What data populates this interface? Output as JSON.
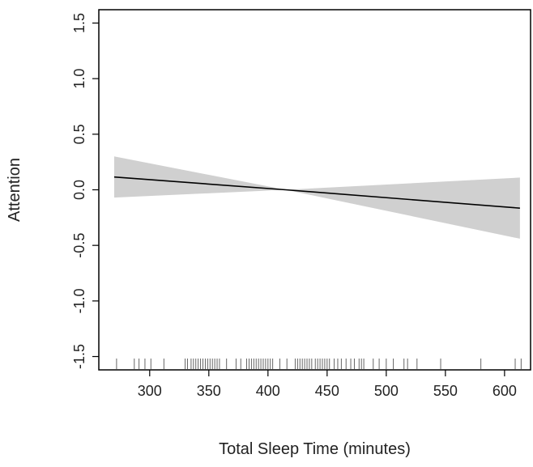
{
  "chart_data": {
    "type": "line",
    "title": "",
    "xlabel": "Total Sleep Time (minutes)",
    "ylabel": "Attention",
    "xlim": [
      257,
      622
    ],
    "ylim": [
      -1.62,
      1.62
    ],
    "x_ticks": [
      {
        "value": 300,
        "label": "300"
      },
      {
        "value": 350,
        "label": "350"
      },
      {
        "value": 400,
        "label": "400"
      },
      {
        "value": 450,
        "label": "450"
      },
      {
        "value": 500,
        "label": "500"
      },
      {
        "value": 550,
        "label": "550"
      },
      {
        "value": 600,
        "label": "600"
      }
    ],
    "y_ticks": [
      {
        "value": -1.5,
        "label": "-1.5"
      },
      {
        "value": -1.0,
        "label": "-1.0"
      },
      {
        "value": -0.5,
        "label": "-0.5"
      },
      {
        "value": 0.0,
        "label": "0.0"
      },
      {
        "value": 0.5,
        "label": "0.5"
      },
      {
        "value": 1.0,
        "label": "1.0"
      },
      {
        "value": 1.5,
        "label": "1.5"
      }
    ],
    "grid": false,
    "series": [
      {
        "x": [
          270,
          415,
          613
        ],
        "y": [
          0.115,
          0.0,
          -0.165
        ],
        "lower": [
          -0.07,
          0.0,
          -0.44
        ],
        "upper": [
          0.3,
          0.0,
          0.11
        ]
      }
    ],
    "rug": [
      272,
      287,
      291,
      296,
      301,
      312,
      330,
      332,
      335,
      337,
      339,
      341,
      343,
      345,
      347,
      349,
      351,
      353,
      355,
      357,
      359,
      365,
      373,
      377,
      382,
      384,
      386,
      388,
      390,
      392,
      394,
      396,
      398,
      400,
      402,
      404,
      410,
      416,
      423,
      425,
      427,
      429,
      431,
      433,
      435,
      437,
      440,
      442,
      444,
      446,
      448,
      450,
      452,
      456,
      459,
      462,
      466,
      470,
      473,
      477,
      479,
      481,
      489,
      494,
      500,
      506,
      515,
      518,
      526,
      546,
      580,
      609,
      614
    ],
    "colors": {
      "band": "#d0d0d0",
      "line": "#000000",
      "axis": "#000000"
    }
  }
}
